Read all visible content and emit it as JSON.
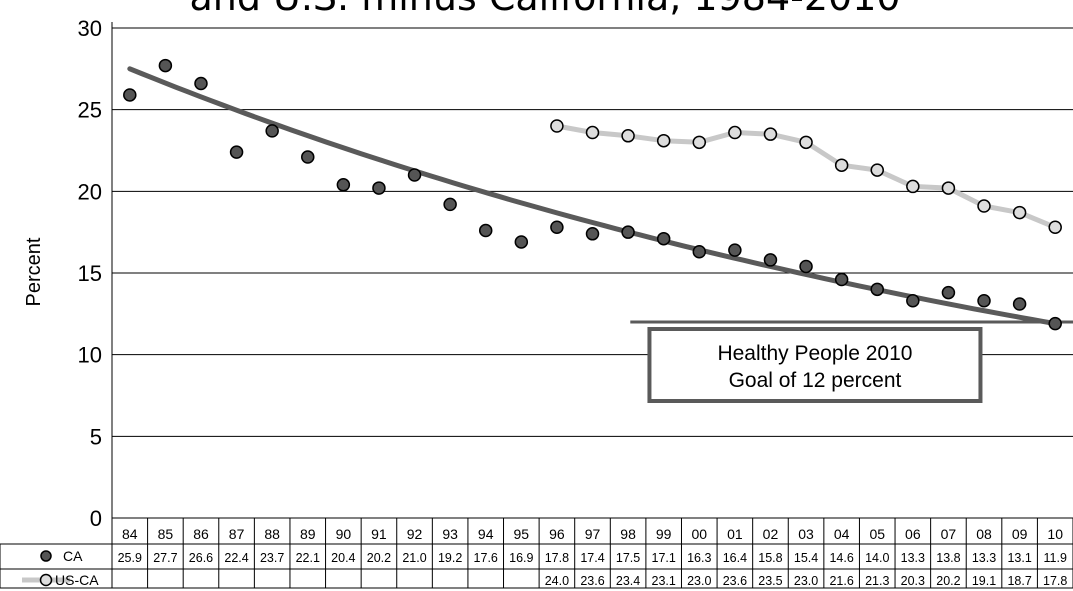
{
  "chart_data": {
    "type": "line",
    "title": "and U.S. minus California, 1984-2010",
    "xlabel": "",
    "ylabel": "Percent",
    "ylim": [
      0,
      30
    ],
    "yticks": [
      "0",
      "5",
      "10",
      "15",
      "20",
      "25",
      "30"
    ],
    "grid": true,
    "categories": [
      "84",
      "85",
      "86",
      "87",
      "88",
      "89",
      "90",
      "91",
      "92",
      "93",
      "94",
      "95",
      "96",
      "97",
      "98",
      "99",
      "00",
      "01",
      "02",
      "03",
      "04",
      "05",
      "06",
      "07",
      "08",
      "09",
      "10"
    ],
    "series": [
      {
        "name": "CA",
        "color": "#555555",
        "marker": "filled-circle",
        "line": false,
        "values": [
          25.9,
          27.7,
          26.6,
          22.4,
          23.7,
          22.1,
          20.4,
          20.2,
          21.0,
          19.2,
          17.6,
          16.9,
          17.8,
          17.4,
          17.5,
          17.1,
          16.3,
          16.4,
          15.8,
          15.4,
          14.6,
          14.0,
          13.3,
          13.8,
          13.3,
          13.1,
          11.9
        ],
        "labels": [
          "25.9",
          "27.7",
          "26.6",
          "22.4",
          "23.7",
          "22.1",
          "20.4",
          "20.2",
          "21.0",
          "19.2",
          "17.6",
          "16.9",
          "17.8",
          "17.4",
          "17.5",
          "17.1",
          "16.3",
          "16.4",
          "15.8",
          "15.4",
          "14.6",
          "14.0",
          "13.3",
          "13.8",
          "13.3",
          "13.1",
          "11.9"
        ]
      },
      {
        "name": "US-CA",
        "color": "#c8c8c8",
        "marker": "open-circle",
        "line": true,
        "values": [
          null,
          null,
          null,
          null,
          null,
          null,
          null,
          null,
          null,
          null,
          null,
          null,
          24.0,
          23.6,
          23.4,
          23.1,
          23.0,
          23.6,
          23.5,
          23.0,
          21.6,
          21.3,
          20.3,
          20.2,
          19.1,
          18.7,
          17.8
        ],
        "labels": [
          "",
          "",
          "",
          "",
          "",
          "",
          "",
          "",
          "",
          "",
          "",
          "",
          "24.0",
          "23.6",
          "23.4",
          "23.1",
          "23.0",
          "23.6",
          "23.5",
          "23.0",
          "21.6",
          "21.3",
          "20.3",
          "20.2",
          "19.1",
          "18.7",
          "17.8"
        ]
      }
    ],
    "trend_line": {
      "series": "CA",
      "start_value": 27.5,
      "end_value": 11.9,
      "color": "#5a5a5a"
    },
    "goal": {
      "value": 12,
      "from_category": "98",
      "text_line1": "Healthy People 2010",
      "text_line2": "Goal of 12 percent",
      "color": "#5a5a5a"
    }
  }
}
